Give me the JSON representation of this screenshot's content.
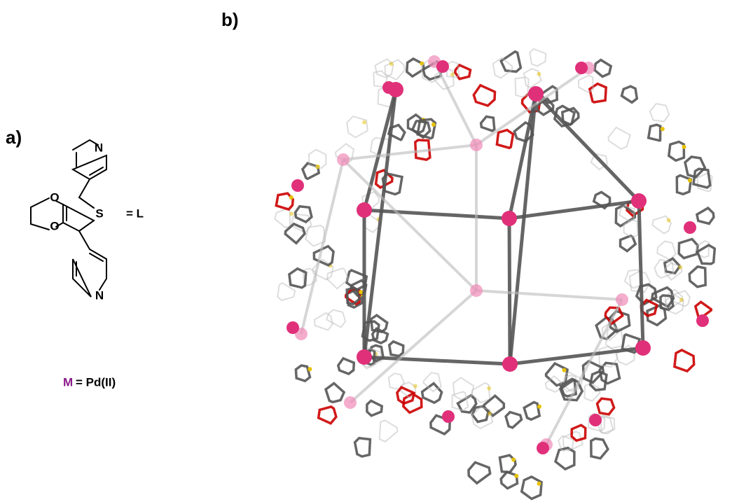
{
  "panel_a": {
    "label": "a)",
    "atoms": [
      "N",
      "O",
      "S",
      "O",
      "N"
    ],
    "ligand_label": "= L",
    "metal_symbol": "M",
    "metal_label": "= Pd(II)"
  },
  "panel_b": {
    "label": "b)"
  }
}
